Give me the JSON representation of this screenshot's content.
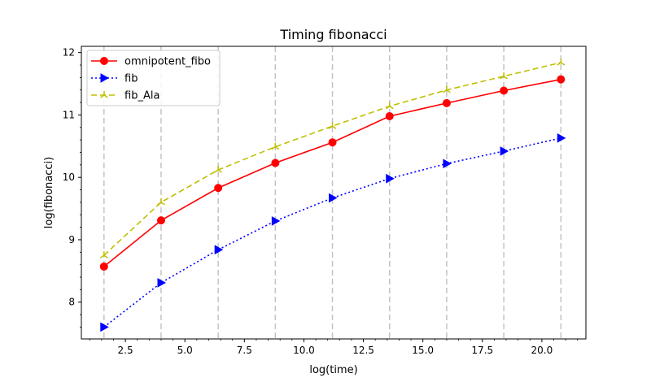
{
  "chart_data": {
    "type": "line",
    "title": "Timing fibonacci",
    "xlabel": "log(time)",
    "ylabel": "log(fibonacci)",
    "xlim": [
      0.65,
      21.85
    ],
    "ylim": [
      7.41,
      12.1
    ],
    "xticks": [
      2.5,
      5.0,
      7.5,
      10.0,
      12.5,
      15.0,
      17.5,
      20.0
    ],
    "xtick_labels": [
      "2.5",
      "5.0",
      "7.5",
      "10.0",
      "12.5",
      "15.0",
      "17.5",
      "20.0"
    ],
    "yticks": [
      8,
      9,
      10,
      11,
      12
    ],
    "ytick_labels": [
      "8",
      "9",
      "10",
      "11",
      "12"
    ],
    "vertical_gridlines": [
      1.6,
      4.0,
      6.4,
      8.8,
      11.2,
      13.6,
      16.0,
      18.4,
      20.8
    ],
    "grid": "dashed vertical lines at sample points",
    "legend_position": "upper left",
    "series": [
      {
        "name": "omnipotent_fibo",
        "color": "#ff0000",
        "linestyle": "solid",
        "marker": "circle",
        "x": [
          1.6,
          4.0,
          6.4,
          8.8,
          11.2,
          13.6,
          16.0,
          18.4,
          20.8
        ],
        "y": [
          8.57,
          9.31,
          9.83,
          10.23,
          10.56,
          10.98,
          11.19,
          11.39,
          11.57
        ]
      },
      {
        "name": "fib",
        "color": "#0000ff",
        "linestyle": "dotted",
        "marker": "triangle-right",
        "x": [
          1.6,
          4.0,
          6.4,
          8.8,
          11.2,
          13.6,
          16.0,
          18.4,
          20.8
        ],
        "y": [
          7.6,
          8.31,
          8.84,
          9.3,
          9.67,
          9.98,
          10.22,
          10.42,
          10.63
        ]
      },
      {
        "name": "fib_Ala",
        "color": "#bfbf00",
        "linestyle": "dashed",
        "marker": "tri-up",
        "x": [
          1.6,
          4.0,
          6.4,
          8.8,
          11.2,
          13.6,
          16.0,
          18.4,
          20.8
        ],
        "y": [
          8.75,
          9.6,
          10.12,
          10.49,
          10.82,
          11.14,
          11.4,
          11.62,
          11.84
        ]
      }
    ]
  }
}
